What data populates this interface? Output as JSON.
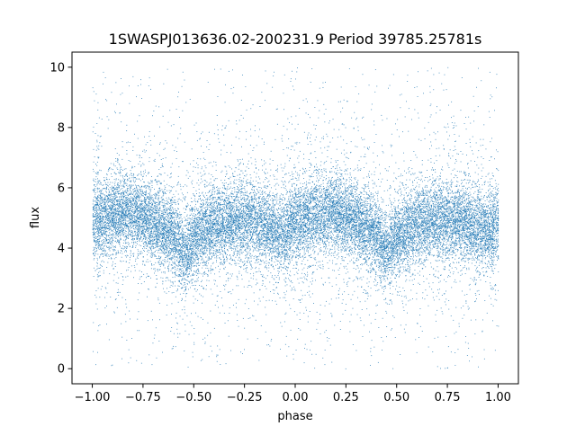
{
  "chart_data": {
    "type": "scatter",
    "title": "1SWASPJ013636.02-200231.9 Period 39785.25781s",
    "xlabel": "phase",
    "ylabel": "flux",
    "xlim": [
      -1.1,
      1.1
    ],
    "ylim": [
      -0.5,
      10.5
    ],
    "xticks": [
      -1.0,
      -0.75,
      -0.5,
      -0.25,
      0.0,
      0.25,
      0.5,
      0.75,
      1.0
    ],
    "xtick_labels": [
      "−1.00",
      "−0.75",
      "−0.50",
      "−0.25",
      "0.00",
      "0.25",
      "0.50",
      "0.75",
      "1.00"
    ],
    "yticks": [
      0,
      2,
      4,
      6,
      8,
      10
    ],
    "ytick_labels": [
      "0",
      "2",
      "4",
      "6",
      "8",
      "10"
    ],
    "grid": false,
    "marker_color": "#1f77b4",
    "phase_range": [
      -1.0,
      1.0
    ],
    "flux_range": [
      0,
      10
    ],
    "light_curve_profile": [
      {
        "phase": -1.0,
        "flux": 4.9
      },
      {
        "phase": -0.9,
        "flux": 5.1
      },
      {
        "phase": -0.8,
        "flux": 5.2
      },
      {
        "phase": -0.7,
        "flux": 4.9
      },
      {
        "phase": -0.6,
        "flux": 4.4
      },
      {
        "phase": -0.55,
        "flux": 3.9
      },
      {
        "phase": -0.5,
        "flux": 4.3
      },
      {
        "phase": -0.4,
        "flux": 4.8
      },
      {
        "phase": -0.3,
        "flux": 4.9
      },
      {
        "phase": -0.2,
        "flux": 4.9
      },
      {
        "phase": -0.1,
        "flux": 4.6
      },
      {
        "phase": -0.05,
        "flux": 4.5
      },
      {
        "phase": 0.0,
        "flux": 4.9
      },
      {
        "phase": 0.1,
        "flux": 5.1
      },
      {
        "phase": 0.2,
        "flux": 5.2
      },
      {
        "phase": 0.3,
        "flux": 4.9
      },
      {
        "phase": 0.4,
        "flux": 4.4
      },
      {
        "phase": 0.45,
        "flux": 3.9
      },
      {
        "phase": 0.5,
        "flux": 4.3
      },
      {
        "phase": 0.6,
        "flux": 4.8
      },
      {
        "phase": 0.7,
        "flux": 4.9
      },
      {
        "phase": 0.8,
        "flux": 4.9
      },
      {
        "phase": 0.9,
        "flux": 4.7
      },
      {
        "phase": 0.95,
        "flux": 4.5
      },
      {
        "phase": 1.0,
        "flux": 4.9
      }
    ]
  }
}
